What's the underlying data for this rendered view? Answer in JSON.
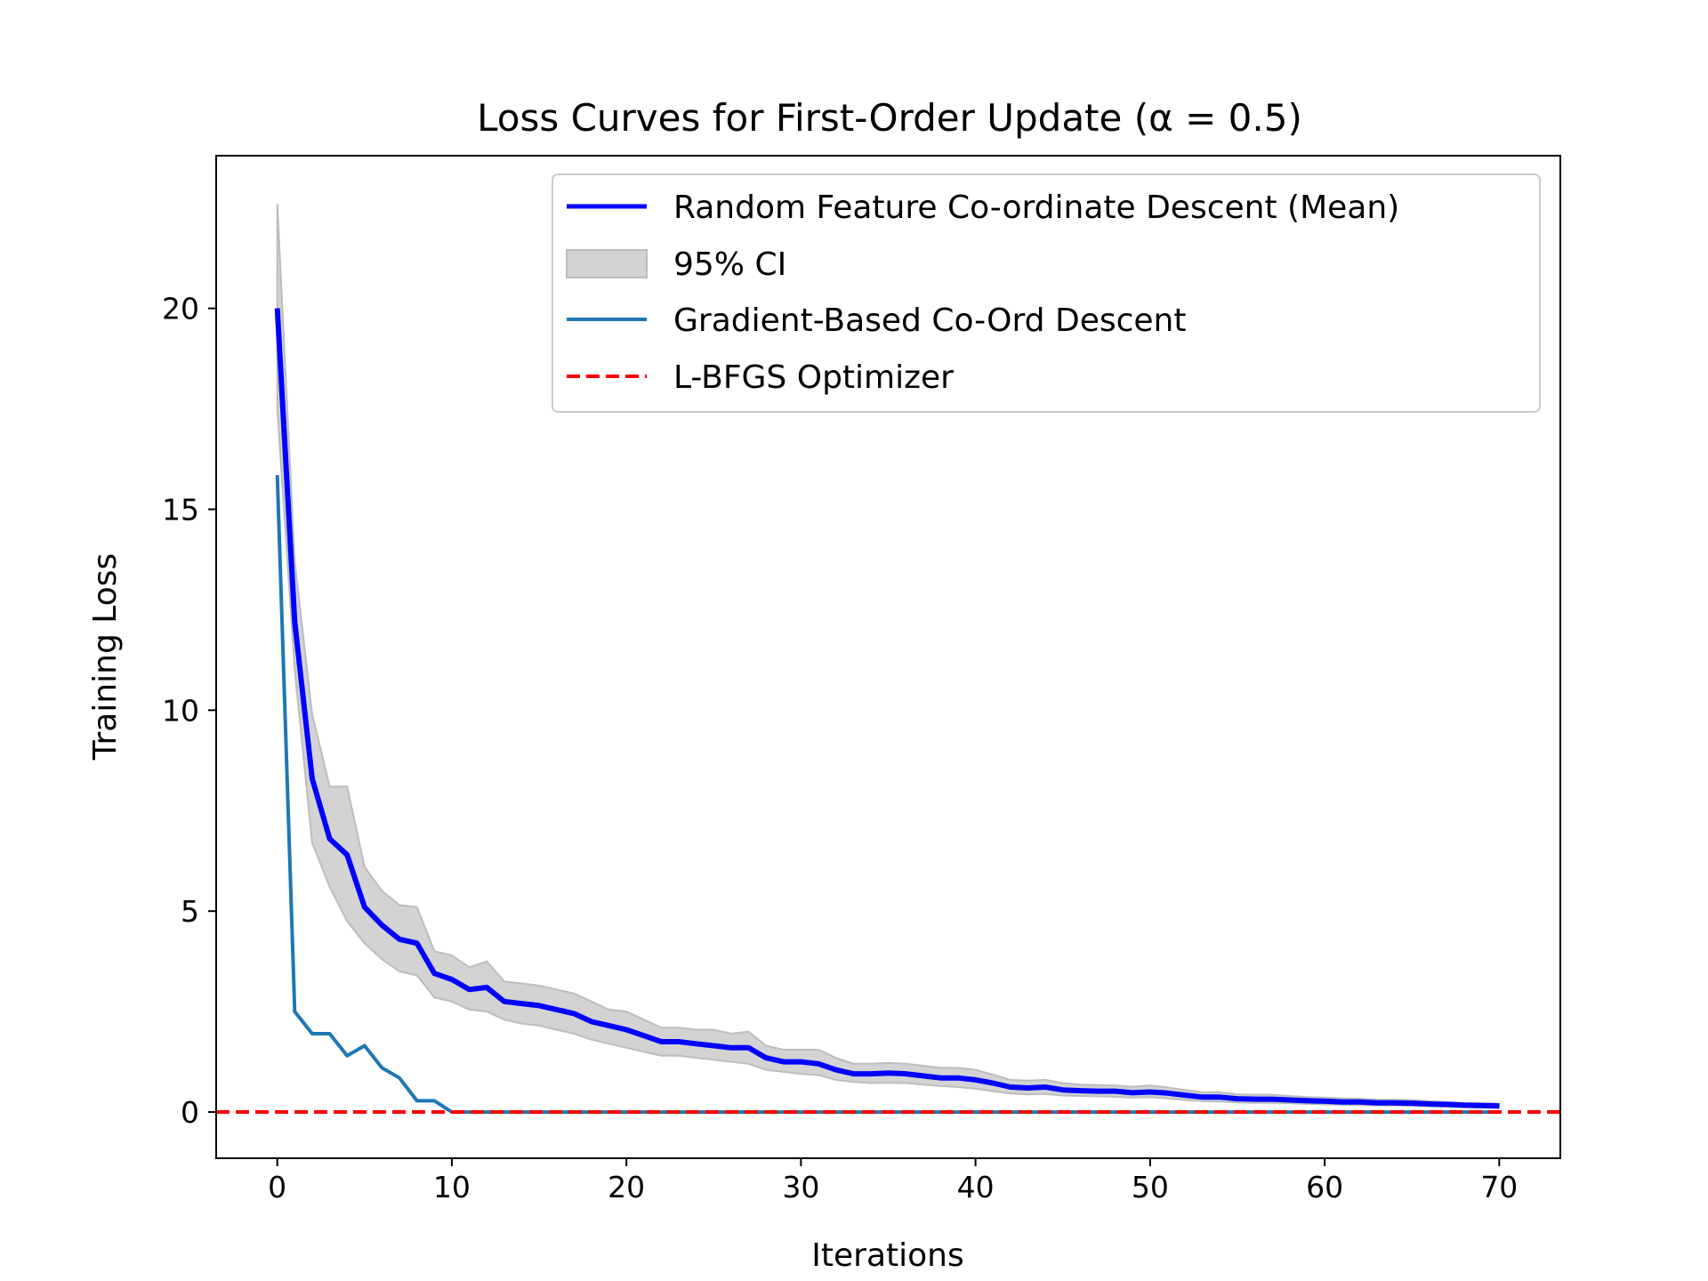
{
  "chart_data": {
    "type": "line",
    "title": "Loss Curves for First-Order Update (α = 0.5)",
    "xlabel": "Iterations",
    "ylabel": "Training Loss",
    "xlim": [
      -3.5,
      73.5
    ],
    "ylim": [
      -1.15,
      23.8
    ],
    "xticks": [
      0,
      10,
      20,
      30,
      40,
      50,
      60,
      70
    ],
    "yticks": [
      0,
      5,
      10,
      15,
      20
    ],
    "grid": false,
    "legend_position": "top-right",
    "series": [
      {
        "name": "Random Feature Co-ordinate Descent (Mean)",
        "kind": "line",
        "color": "#0000ff",
        "x": [
          0,
          1,
          2,
          3,
          4,
          5,
          6,
          7,
          8,
          9,
          10,
          11,
          12,
          13,
          14,
          15,
          16,
          17,
          18,
          19,
          20,
          21,
          22,
          23,
          24,
          25,
          26,
          27,
          28,
          29,
          30,
          31,
          32,
          33,
          34,
          35,
          36,
          37,
          38,
          39,
          40,
          41,
          42,
          43,
          44,
          45,
          46,
          47,
          48,
          49,
          50,
          51,
          52,
          53,
          54,
          55,
          56,
          57,
          58,
          59,
          60,
          61,
          62,
          63,
          64,
          65,
          66,
          67,
          68,
          69,
          70
        ],
        "y": [
          20.0,
          12.2,
          8.3,
          6.8,
          6.4,
          5.1,
          4.65,
          4.3,
          4.2,
          3.45,
          3.3,
          3.05,
          3.1,
          2.75,
          2.7,
          2.65,
          2.55,
          2.45,
          2.25,
          2.15,
          2.05,
          1.9,
          1.75,
          1.75,
          1.7,
          1.65,
          1.6,
          1.6,
          1.35,
          1.25,
          1.25,
          1.2,
          1.05,
          0.95,
          0.95,
          0.97,
          0.95,
          0.9,
          0.85,
          0.85,
          0.8,
          0.72,
          0.62,
          0.6,
          0.62,
          0.55,
          0.53,
          0.52,
          0.52,
          0.48,
          0.5,
          0.47,
          0.42,
          0.37,
          0.37,
          0.33,
          0.32,
          0.32,
          0.3,
          0.28,
          0.27,
          0.25,
          0.25,
          0.23,
          0.23,
          0.22,
          0.2,
          0.19,
          0.17,
          0.16,
          0.15
        ]
      },
      {
        "name": "95% CI",
        "kind": "band",
        "color": "#d3d3d3",
        "x": [
          0,
          1,
          2,
          3,
          4,
          5,
          6,
          7,
          8,
          9,
          10,
          11,
          12,
          13,
          14,
          15,
          16,
          17,
          18,
          19,
          20,
          21,
          22,
          23,
          24,
          25,
          26,
          27,
          28,
          29,
          30,
          31,
          32,
          33,
          34,
          35,
          36,
          37,
          38,
          39,
          40,
          41,
          42,
          43,
          44,
          45,
          46,
          47,
          48,
          49,
          50,
          51,
          52,
          53,
          54,
          55,
          56,
          57,
          58,
          59,
          60,
          61,
          62,
          63,
          64,
          65,
          66,
          67,
          68,
          69,
          70
        ],
        "lower": [
          17.5,
          11.0,
          6.7,
          5.6,
          4.75,
          4.2,
          3.8,
          3.5,
          3.4,
          2.85,
          2.75,
          2.55,
          2.5,
          2.3,
          2.2,
          2.15,
          2.05,
          1.95,
          1.8,
          1.7,
          1.6,
          1.5,
          1.4,
          1.4,
          1.35,
          1.3,
          1.25,
          1.2,
          1.05,
          1.0,
          0.95,
          0.92,
          0.8,
          0.75,
          0.72,
          0.73,
          0.72,
          0.68,
          0.65,
          0.62,
          0.58,
          0.52,
          0.46,
          0.44,
          0.45,
          0.41,
          0.4,
          0.39,
          0.38,
          0.36,
          0.37,
          0.34,
          0.3,
          0.27,
          0.26,
          0.24,
          0.23,
          0.23,
          0.22,
          0.2,
          0.19,
          0.18,
          0.17,
          0.16,
          0.16,
          0.15,
          0.14,
          0.13,
          0.12,
          0.11,
          0.1
        ],
        "upper": [
          22.6,
          13.7,
          9.9,
          8.1,
          8.1,
          6.1,
          5.5,
          5.15,
          5.1,
          4.0,
          3.9,
          3.6,
          3.75,
          3.25,
          3.2,
          3.15,
          3.05,
          2.95,
          2.75,
          2.55,
          2.5,
          2.3,
          2.1,
          2.1,
          2.05,
          2.05,
          1.95,
          2.0,
          1.65,
          1.55,
          1.55,
          1.55,
          1.35,
          1.2,
          1.2,
          1.22,
          1.2,
          1.15,
          1.1,
          1.1,
          1.05,
          0.93,
          0.8,
          0.78,
          0.8,
          0.72,
          0.68,
          0.67,
          0.66,
          0.63,
          0.66,
          0.61,
          0.55,
          0.49,
          0.49,
          0.44,
          0.43,
          0.43,
          0.4,
          0.37,
          0.36,
          0.34,
          0.33,
          0.31,
          0.31,
          0.3,
          0.27,
          0.25,
          0.23,
          0.22,
          0.21
        ]
      },
      {
        "name": "Gradient-Based Co-Ord Descent",
        "kind": "line",
        "color": "#1f77b4",
        "x": [
          0,
          1,
          2,
          3,
          4,
          5,
          6,
          7,
          8,
          9,
          10,
          11,
          12,
          13,
          14,
          15,
          16,
          17,
          18,
          19,
          20,
          21,
          22,
          23,
          24,
          25,
          26,
          27,
          28,
          29,
          30,
          31,
          32,
          33,
          34,
          35,
          36,
          37,
          38,
          39,
          40,
          41,
          42,
          43,
          44,
          45,
          46,
          47,
          48,
          49,
          50,
          51,
          52,
          53,
          54,
          55,
          56,
          57,
          58,
          59,
          60,
          61,
          62,
          63,
          64,
          65,
          66,
          67,
          68,
          69,
          70
        ],
        "y": [
          15.85,
          2.5,
          1.95,
          1.95,
          1.4,
          1.65,
          1.1,
          0.85,
          0.28,
          0.28,
          0,
          0,
          0,
          0,
          0,
          0,
          0,
          0,
          0,
          0,
          0,
          0,
          0,
          0,
          0,
          0,
          0,
          0,
          0,
          0,
          0,
          0,
          0,
          0,
          0,
          0,
          0,
          0,
          0,
          0,
          0,
          0,
          0,
          0,
          0,
          0,
          0,
          0,
          0,
          0,
          0,
          0,
          0,
          0,
          0,
          0,
          0,
          0,
          0,
          0,
          0,
          0,
          0,
          0,
          0,
          0,
          0,
          0,
          0,
          0,
          0
        ]
      },
      {
        "name": "L-BFGS Optimizer",
        "kind": "hline",
        "color": "#ff0000",
        "y": 0
      }
    ]
  }
}
